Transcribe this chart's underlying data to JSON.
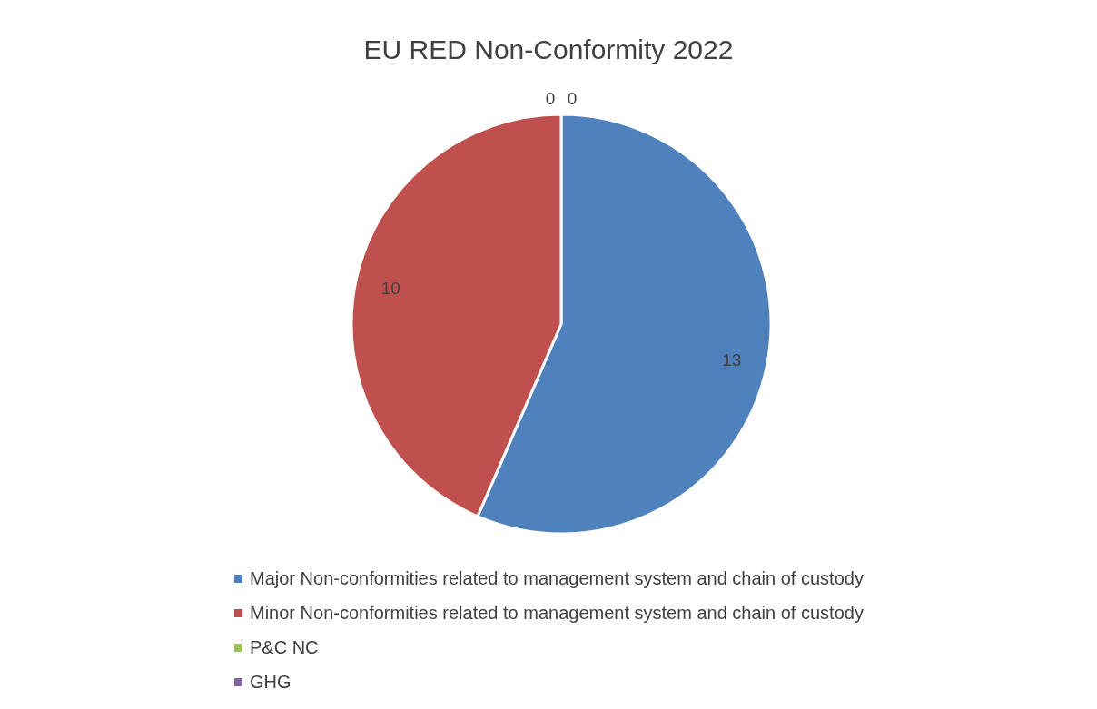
{
  "chart_data": {
    "type": "pie",
    "title": "EU RED Non-Conformity 2022",
    "categories": [
      "Major Non-conformities related to management system and chain of custody",
      "Minor Non-conformities related to management system and chain of custody",
      "P&C NC",
      "GHG"
    ],
    "values": [
      13,
      10,
      0,
      0
    ],
    "colors": [
      "#4f81bd",
      "#c0504d",
      "#9bbb59",
      "#8064a2"
    ],
    "value_labels": [
      "13",
      "10",
      "0",
      "0"
    ],
    "legend": "bottom"
  }
}
